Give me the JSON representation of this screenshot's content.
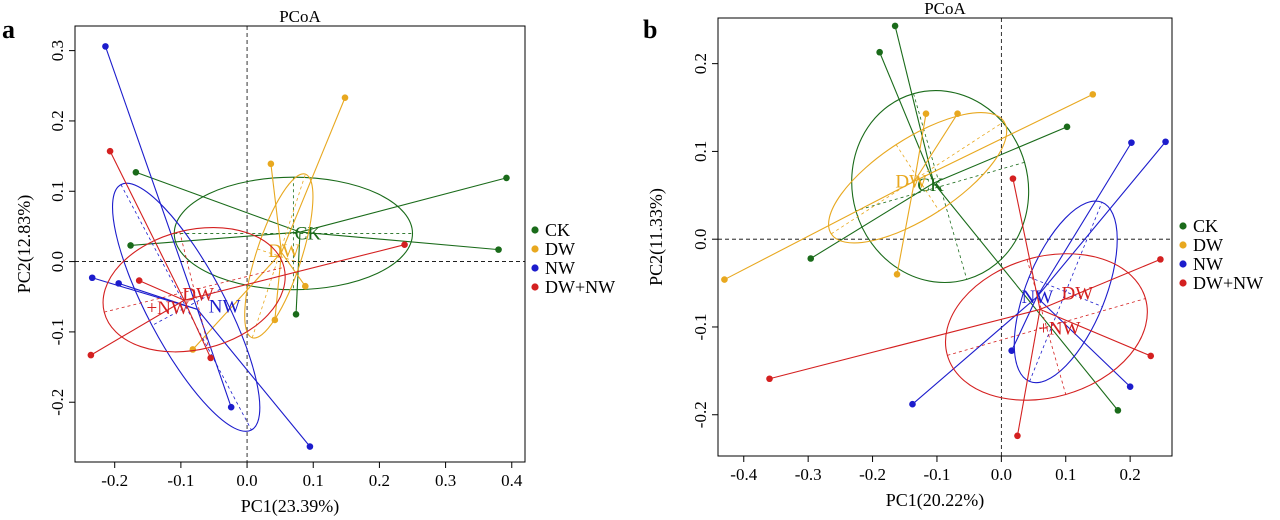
{
  "chart_data": [
    {
      "panel_label": "a",
      "type": "scatter",
      "title": "PCoA",
      "xlabel": "PC1(23.39%)",
      "ylabel": "PC2(12.83%)",
      "xlim": [
        -0.26,
        0.42
      ],
      "ylim": [
        -0.285,
        0.335
      ],
      "xticks": [
        -0.2,
        -0.1,
        0.0,
        0.1,
        0.2,
        0.3,
        0.4
      ],
      "xtick_labels": [
        "-0.2",
        "-0.1",
        "0.0",
        "0.1",
        "0.2",
        "0.3",
        "0.4"
      ],
      "yticks": [
        -0.2,
        -0.1,
        0.0,
        0.1,
        0.2,
        0.3
      ],
      "ytick_labels": [
        "-0.2",
        "-0.1",
        "0.0",
        "0.1",
        "0.2",
        "0.3"
      ],
      "zero_lines": true,
      "legend_position": "right",
      "series": [
        {
          "name": "CK",
          "color": "#1a6b1a",
          "centroid": [
            0.08,
            0.042
          ],
          "points": [
            [
              -0.168,
              0.127
            ],
            [
              -0.176,
              0.023
            ],
            [
              0.392,
              0.119
            ],
            [
              0.38,
              0.017
            ],
            [
              0.074,
              -0.075
            ]
          ],
          "ellipse": {
            "cx": 0.07,
            "cy": 0.04,
            "rx": 0.18,
            "ry": 0.08,
            "angle_deg": 0
          },
          "labels": [
            {
              "text": "CK",
              "x": 0.092,
              "y": 0.04
            }
          ]
        },
        {
          "name": "DW",
          "color": "#e8a81f",
          "centroid": [
            0.052,
            0.013
          ],
          "points": [
            [
              0.148,
              0.233
            ],
            [
              0.036,
              0.139
            ],
            [
              0.088,
              -0.035
            ],
            [
              0.042,
              -0.083
            ],
            [
              -0.082,
              -0.125
            ]
          ],
          "ellipse": {
            "cx": 0.048,
            "cy": 0.008,
            "rx": 0.13,
            "ry": 0.032,
            "angle_deg": 72
          },
          "labels": [
            {
              "text": "DW",
              "x": 0.056,
              "y": 0.015
            }
          ]
        },
        {
          "name": "NW",
          "color": "#1c1ccc",
          "centroid": [
            -0.075,
            -0.068
          ],
          "points": [
            [
              -0.214,
              0.306
            ],
            [
              -0.234,
              -0.023
            ],
            [
              -0.194,
              -0.031
            ],
            [
              -0.024,
              -0.207
            ],
            [
              0.095,
              -0.263
            ]
          ],
          "ellipse": {
            "cx": -0.092,
            "cy": -0.065,
            "rx": 0.21,
            "ry": 0.055,
            "angle_deg": -62
          },
          "labels": [
            {
              "text": "NW",
              "x": -0.034,
              "y": -0.064
            }
          ]
        },
        {
          "name": "DW+NW",
          "color": "#d42020",
          "centroid": [
            -0.095,
            -0.055
          ],
          "points": [
            [
              -0.207,
              0.157
            ],
            [
              -0.236,
              -0.133
            ],
            [
              -0.163,
              -0.027
            ],
            [
              -0.055,
              -0.137
            ],
            [
              0.238,
              0.024
            ]
          ],
          "ellipse": {
            "cx": -0.08,
            "cy": -0.04,
            "rx": 0.14,
            "ry": 0.085,
            "angle_deg": 14
          },
          "labels": [
            {
              "text": "DW",
              "x": -0.074,
              "y": -0.047
            },
            {
              "text": "+NW",
              "x": -0.12,
              "y": -0.066
            }
          ]
        }
      ]
    },
    {
      "panel_label": "b",
      "type": "scatter",
      "title": "PCoA",
      "xlabel": "PC1(20.22%)",
      "ylabel": "PC2(11.33%)",
      "xlim": [
        -0.44,
        0.265
      ],
      "ylim": [
        -0.247,
        0.252
      ],
      "xticks": [
        -0.4,
        -0.3,
        -0.2,
        -0.1,
        0.0,
        0.1,
        0.2
      ],
      "xtick_labels": [
        "-0.4",
        "-0.3",
        "-0.2",
        "-0.1",
        "0.0",
        "0.1",
        "0.2"
      ],
      "yticks": [
        -0.2,
        -0.1,
        0.0,
        0.1,
        0.2
      ],
      "ytick_labels": [
        "-0.2",
        "-0.1",
        "0.0",
        "0.1",
        "0.2"
      ],
      "zero_lines": true,
      "legend_position": "right",
      "series": [
        {
          "name": "CK",
          "color": "#1a6b1a",
          "centroid": [
            -0.105,
            0.064
          ],
          "points": [
            [
              -0.165,
              0.243
            ],
            [
              -0.189,
              0.213
            ],
            [
              0.102,
              0.128
            ],
            [
              -0.296,
              -0.022
            ],
            [
              0.181,
              -0.195
            ]
          ],
          "ellipse": {
            "cx": -0.095,
            "cy": 0.06,
            "rx": 0.15,
            "ry": 0.1,
            "angle_deg": -74
          },
          "labels": [
            {
              "text": "CK",
              "x": -0.11,
              "y": 0.062
            }
          ]
        },
        {
          "name": "DW",
          "color": "#e8a81f",
          "centroid": [
            -0.135,
            0.066
          ],
          "points": [
            [
              -0.068,
              0.143
            ],
            [
              -0.117,
              0.143
            ],
            [
              0.142,
              0.165
            ],
            [
              -0.43,
              -0.046
            ],
            [
              -0.162,
              -0.04
            ]
          ],
          "ellipse": {
            "cx": -0.13,
            "cy": 0.07,
            "rx": 0.16,
            "ry": 0.045,
            "angle_deg": 33
          },
          "labels": [
            {
              "text": "DW",
              "x": -0.14,
              "y": 0.066
            }
          ]
        },
        {
          "name": "NW",
          "color": "#1c1ccc",
          "centroid": [
            0.055,
            -0.066
          ],
          "points": [
            [
              0.202,
              0.11
            ],
            [
              0.255,
              0.111
            ],
            [
              -0.138,
              -0.188
            ],
            [
              0.016,
              -0.127
            ],
            [
              0.2,
              -0.168
            ]
          ],
          "ellipse": {
            "cx": 0.1,
            "cy": -0.06,
            "rx": 0.15,
            "ry": 0.045,
            "angle_deg": 68
          },
          "labels": [
            {
              "text": "NW",
              "x": 0.056,
              "y": -0.066
            }
          ]
        },
        {
          "name": "DW+NW",
          "color": "#d42020",
          "centroid": [
            0.06,
            -0.08
          ],
          "points": [
            [
              0.018,
              0.069
            ],
            [
              0.247,
              -0.023
            ],
            [
              -0.36,
              -0.159
            ],
            [
              0.232,
              -0.133
            ],
            [
              0.025,
              -0.224
            ]
          ],
          "ellipse": {
            "cx": 0.07,
            "cy": -0.1,
            "rx": 0.16,
            "ry": 0.08,
            "angle_deg": 16
          },
          "labels": [
            {
              "text": "DW",
              "x": 0.118,
              "y": -0.062
            },
            {
              "text": "+NW",
              "x": 0.09,
              "y": -0.102
            }
          ]
        }
      ]
    }
  ]
}
